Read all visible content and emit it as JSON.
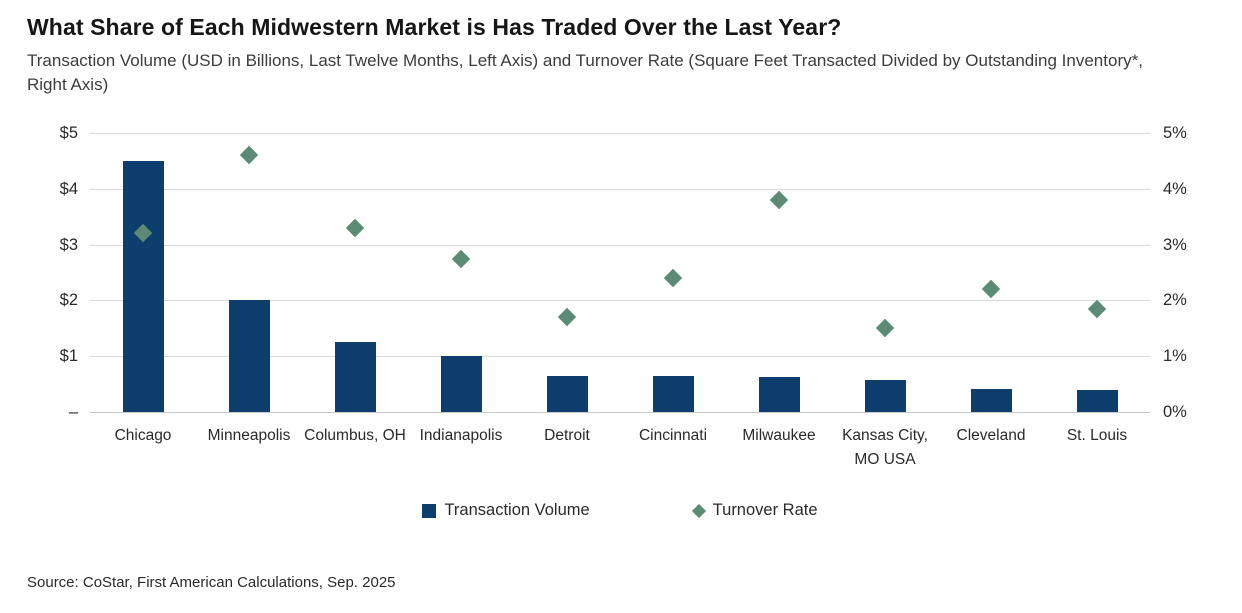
{
  "header": {
    "title": "What Share of Each Midwestern Market is Has Traded Over the Last Year?",
    "subtitle": "Transaction Volume (USD in Billions,  Last Twelve Months, Left Axis) and Turnover Rate (Square Feet Transacted Divided  by Outstanding Inventory*, Right Axis)"
  },
  "footer": {
    "source": "Source: CoStar, First American Calculations, Sep. 2025"
  },
  "colors": {
    "bar": "#0d3e6d",
    "diamond": "#5b8b74",
    "gridline": "#dadada"
  },
  "chart_data": {
    "type": "bar",
    "subtype": "combo-bar-scatter",
    "title": "What Share of Each Midwestern Market is Has Traded Over the Last Year?",
    "categories": [
      "Chicago",
      "Minneapolis",
      "Columbus, OH",
      "Indianapolis",
      "Detroit",
      "Cincinnati",
      "Milwaukee",
      "Kansas City, MO USA",
      "Cleveland",
      "St. Louis"
    ],
    "series": [
      {
        "name": "Transaction Volume",
        "type": "bar",
        "axis": "left",
        "unit": "USD billions",
        "color": "#0d3e6d",
        "values": [
          4.5,
          2.0,
          1.25,
          1.0,
          0.65,
          0.65,
          0.62,
          0.58,
          0.42,
          0.4
        ]
      },
      {
        "name": "Turnover Rate",
        "type": "scatter",
        "marker": "diamond",
        "axis": "right",
        "unit": "percent",
        "color": "#5b8b74",
        "values": [
          3.2,
          4.6,
          3.3,
          2.75,
          1.7,
          2.4,
          3.8,
          1.5,
          2.2,
          1.85
        ]
      }
    ],
    "left_axis": {
      "min": 0,
      "max": 5,
      "tick_labels_top_to_bottom": [
        "$5",
        "$4",
        "$3",
        "$2",
        "$1",
        "–"
      ]
    },
    "right_axis": {
      "min": 0,
      "max": 5,
      "tick_labels_top_to_bottom": [
        "5%",
        "4%",
        "3%",
        "2%",
        "1%",
        "0%"
      ]
    },
    "grid": true,
    "legend": [
      {
        "label": "Transaction Volume",
        "marker": "square",
        "color": "#0d3e6d"
      },
      {
        "label": "Turnover Rate",
        "marker": "diamond",
        "color": "#5b8b74"
      }
    ],
    "legend_position": "bottom-center"
  }
}
